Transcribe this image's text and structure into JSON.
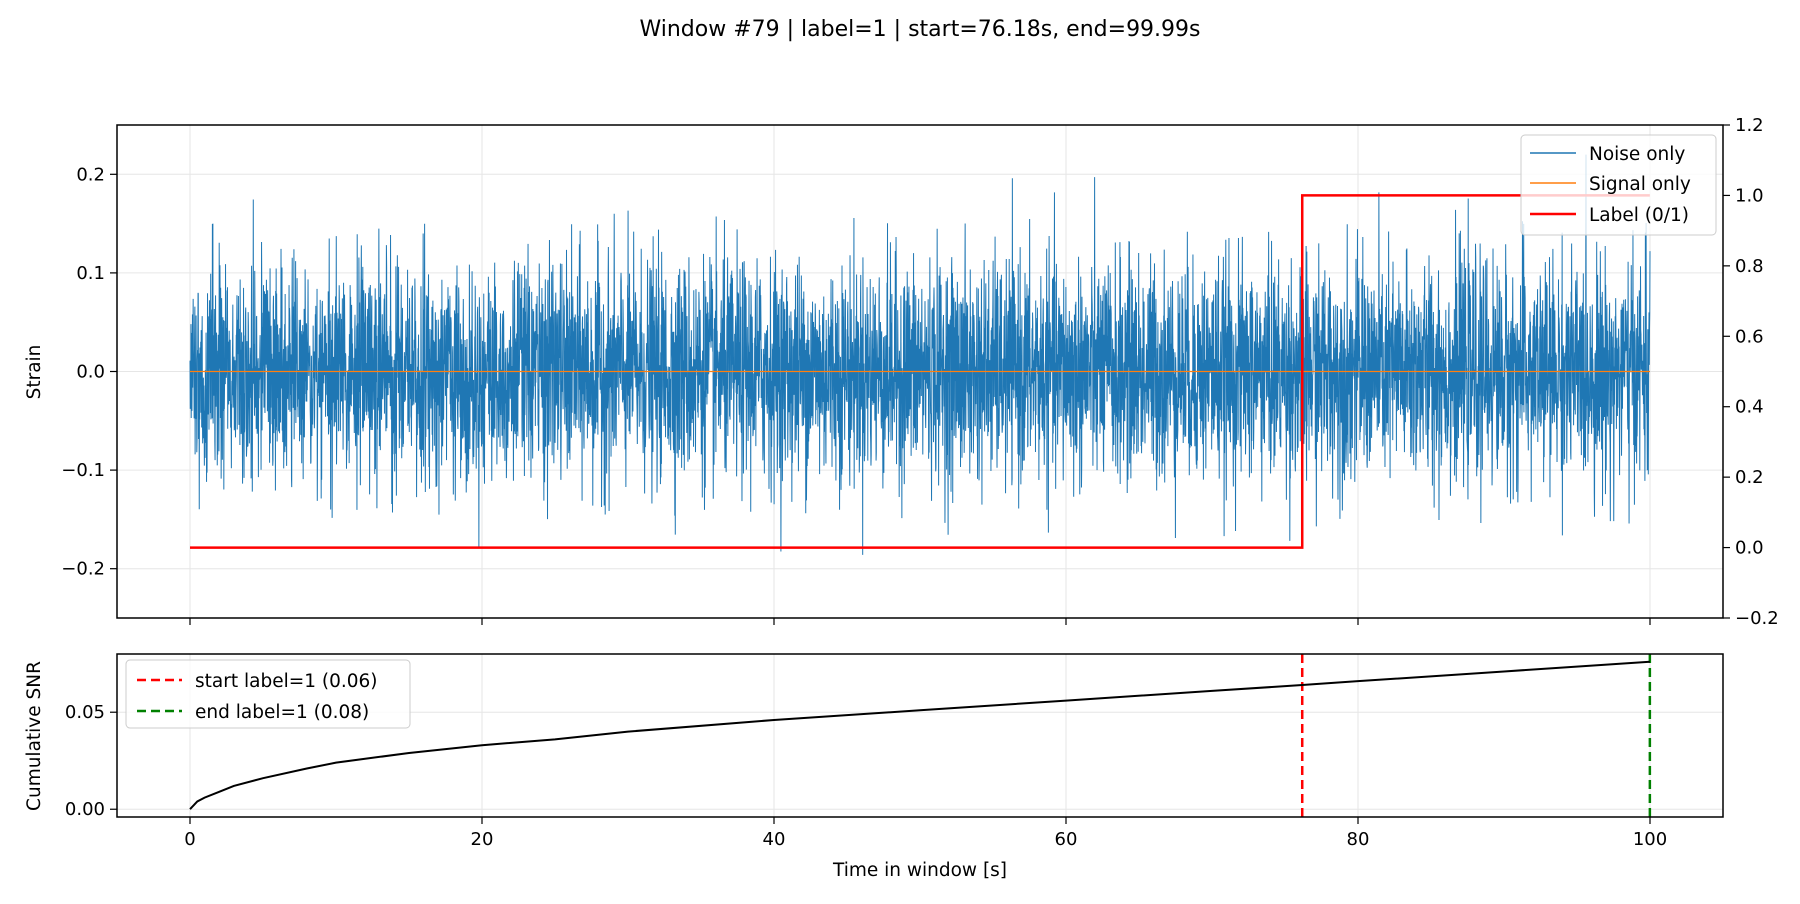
{
  "figure": {
    "title": "Window #79 | label=1 | start=76.18s, end=99.99s"
  },
  "colors": {
    "noise": "#1f77b4",
    "signal": "#ff7f0e",
    "label": "#ff0000",
    "snr": "#000000",
    "start_marker": "#ff0000",
    "end_marker": "#008000",
    "grid": "#e6e6e6"
  },
  "chart_data": [
    {
      "type": "line",
      "panel": "top",
      "xlabel": "",
      "ylabel": "Strain",
      "xlim": [
        -5,
        105
      ],
      "ylim": [
        -0.25,
        0.25
      ],
      "y2lim": [
        -0.2,
        1.2
      ],
      "xticks": [
        0,
        20,
        40,
        60,
        80,
        100
      ],
      "yticks": [
        "−0.2",
        "−0.1",
        "0.0",
        "0.1",
        "0.2"
      ],
      "ytick_values": [
        -0.2,
        -0.1,
        0.0,
        0.1,
        0.2
      ],
      "y2ticks": [
        "−0.2",
        "0.0",
        "0.2",
        "0.4",
        "0.6",
        "0.8",
        "1.0",
        "1.2"
      ],
      "y2tick_values": [
        -0.2,
        0.0,
        0.2,
        0.4,
        0.6,
        0.8,
        1.0,
        1.2
      ],
      "grid": true,
      "legend_position": "top-right",
      "series": [
        {
          "name": "Noise only",
          "axis": "left",
          "noise_std": 0.055,
          "approx_range": [
            -0.23,
            0.22
          ],
          "x_range": [
            0,
            100
          ]
        },
        {
          "name": "Signal only",
          "axis": "left",
          "x": [
            0,
            100
          ],
          "y": [
            0.0,
            0.0
          ]
        },
        {
          "name": "Label (0/1)",
          "axis": "right",
          "x": [
            0,
            76.18,
            76.18,
            99.99
          ],
          "y": [
            0,
            0,
            1,
            1
          ]
        }
      ]
    },
    {
      "type": "line",
      "panel": "bottom",
      "xlabel": "Time in window [s]",
      "ylabel": "Cumulative SNR",
      "xlim": [
        -5,
        105
      ],
      "ylim": [
        -0.004,
        0.08
      ],
      "xticks": [
        0,
        20,
        40,
        60,
        80,
        100
      ],
      "yticks": [
        "0.00",
        "0.05"
      ],
      "ytick_values": [
        0.0,
        0.05
      ],
      "grid": true,
      "legend_position": "top-left",
      "series": [
        {
          "name": "",
          "x": [
            0,
            0.5,
            1,
            2,
            3,
            5,
            8,
            10,
            15,
            20,
            25,
            30,
            40,
            50,
            60,
            70,
            76.18,
            80,
            90,
            99.99
          ],
          "y": [
            0.0,
            0.004,
            0.006,
            0.009,
            0.012,
            0.016,
            0.021,
            0.024,
            0.029,
            0.033,
            0.036,
            0.04,
            0.046,
            0.051,
            0.056,
            0.061,
            0.064,
            0.066,
            0.071,
            0.076
          ]
        }
      ],
      "vlines": [
        {
          "name": "start label=1 (0.06)",
          "x": 76.18
        },
        {
          "name": "end label=1 (0.08)",
          "x": 99.99
        }
      ]
    }
  ]
}
